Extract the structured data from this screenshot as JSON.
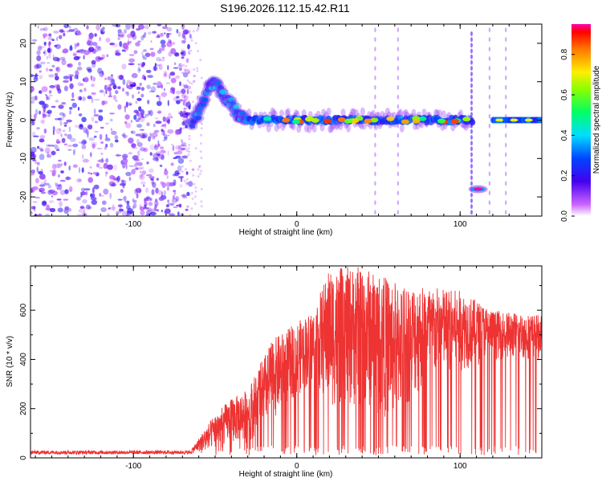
{
  "title": "S196.2026.112.15.42.R11",
  "chart_data": [
    {
      "type": "heatmap",
      "xlabel": "Height of straight line (km)",
      "ylabel": "Frequency (Hz)",
      "xlim": [
        -163,
        150
      ],
      "ylim": [
        -25,
        25
      ],
      "x_ticks": [
        {
          "value": -100,
          "label": "-100"
        },
        {
          "value": 0,
          "label": "0"
        },
        {
          "value": 100,
          "label": "100"
        }
      ],
      "y_ticks": [
        {
          "value": 20,
          "label": "20"
        },
        {
          "value": 10,
          "label": "10"
        },
        {
          "value": 0,
          "label": "0"
        },
        {
          "value": -10,
          "label": "-10"
        },
        {
          "value": -20,
          "label": "-20"
        }
      ],
      "colorbar": {
        "label": "Normalized spectral amplitude",
        "range": [
          0,
          0.95
        ],
        "ticks": [
          {
            "value": 0.0,
            "label": "0.0"
          },
          {
            "value": 0.2,
            "label": "0.2"
          },
          {
            "value": 0.4,
            "label": "0.4"
          },
          {
            "value": 0.6,
            "label": "0.6"
          },
          {
            "value": 0.8,
            "label": "0.8"
          }
        ]
      },
      "features": [
        {
          "name": "noise-region",
          "x_range": [
            -163,
            -65
          ],
          "y_range": [
            -25,
            25
          ],
          "amplitude": 0.15
        },
        {
          "name": "rising-segment",
          "points": [
            [
              -65,
              -1
            ],
            [
              -60,
              2
            ],
            [
              -55,
              8
            ],
            [
              -50,
              10
            ],
            [
              -45,
              6
            ],
            [
              -40,
              4
            ],
            [
              -35,
              1
            ],
            [
              -30,
              0
            ]
          ],
          "amplitude": 0.35
        },
        {
          "name": "main-band",
          "x_range": [
            -30,
            108
          ],
          "freq": 0,
          "amplitude": 0.5
        },
        {
          "name": "offset-band",
          "x_range": [
            107,
            115
          ],
          "freq": -18,
          "amplitude": 0.95
        },
        {
          "name": "late-band",
          "x_range": [
            120,
            150
          ],
          "freq": 0,
          "amplitude": 0.7
        }
      ]
    },
    {
      "type": "line",
      "xlabel": "Height of straight line (km)",
      "ylabel": "SNR (10 * v/v)",
      "xlim": [
        -163,
        150
      ],
      "ylim": [
        0,
        780
      ],
      "line_color": "#ee3333",
      "x_ticks": [
        {
          "value": -100,
          "label": "-100"
        },
        {
          "value": 0,
          "label": "0"
        },
        {
          "value": 100,
          "label": "100"
        }
      ],
      "y_ticks": [
        {
          "value": 0,
          "label": "0"
        },
        {
          "value": 200,
          "label": "200"
        },
        {
          "value": 400,
          "label": "400"
        },
        {
          "value": 600,
          "label": "600"
        }
      ],
      "envelope": [
        {
          "x": -163,
          "baseline": 15,
          "peak": 30
        },
        {
          "x": -65,
          "baseline": 15,
          "peak": 30
        },
        {
          "x": -50,
          "baseline": 40,
          "peak": 180
        },
        {
          "x": -40,
          "baseline": 60,
          "peak": 240
        },
        {
          "x": -30,
          "baseline": 60,
          "peak": 280
        },
        {
          "x": -15,
          "baseline": 150,
          "peak": 480
        },
        {
          "x": 0,
          "baseline": 250,
          "peak": 550
        },
        {
          "x": 10,
          "baseline": 300,
          "peak": 600
        },
        {
          "x": 20,
          "baseline": 200,
          "peak": 770
        },
        {
          "x": 40,
          "baseline": 200,
          "peak": 780
        },
        {
          "x": 60,
          "baseline": 150,
          "peak": 720
        },
        {
          "x": 80,
          "baseline": 300,
          "peak": 700
        },
        {
          "x": 100,
          "baseline": 350,
          "peak": 680
        },
        {
          "x": 120,
          "baseline": 400,
          "peak": 600
        },
        {
          "x": 150,
          "baseline": 400,
          "peak": 580
        }
      ]
    }
  ]
}
